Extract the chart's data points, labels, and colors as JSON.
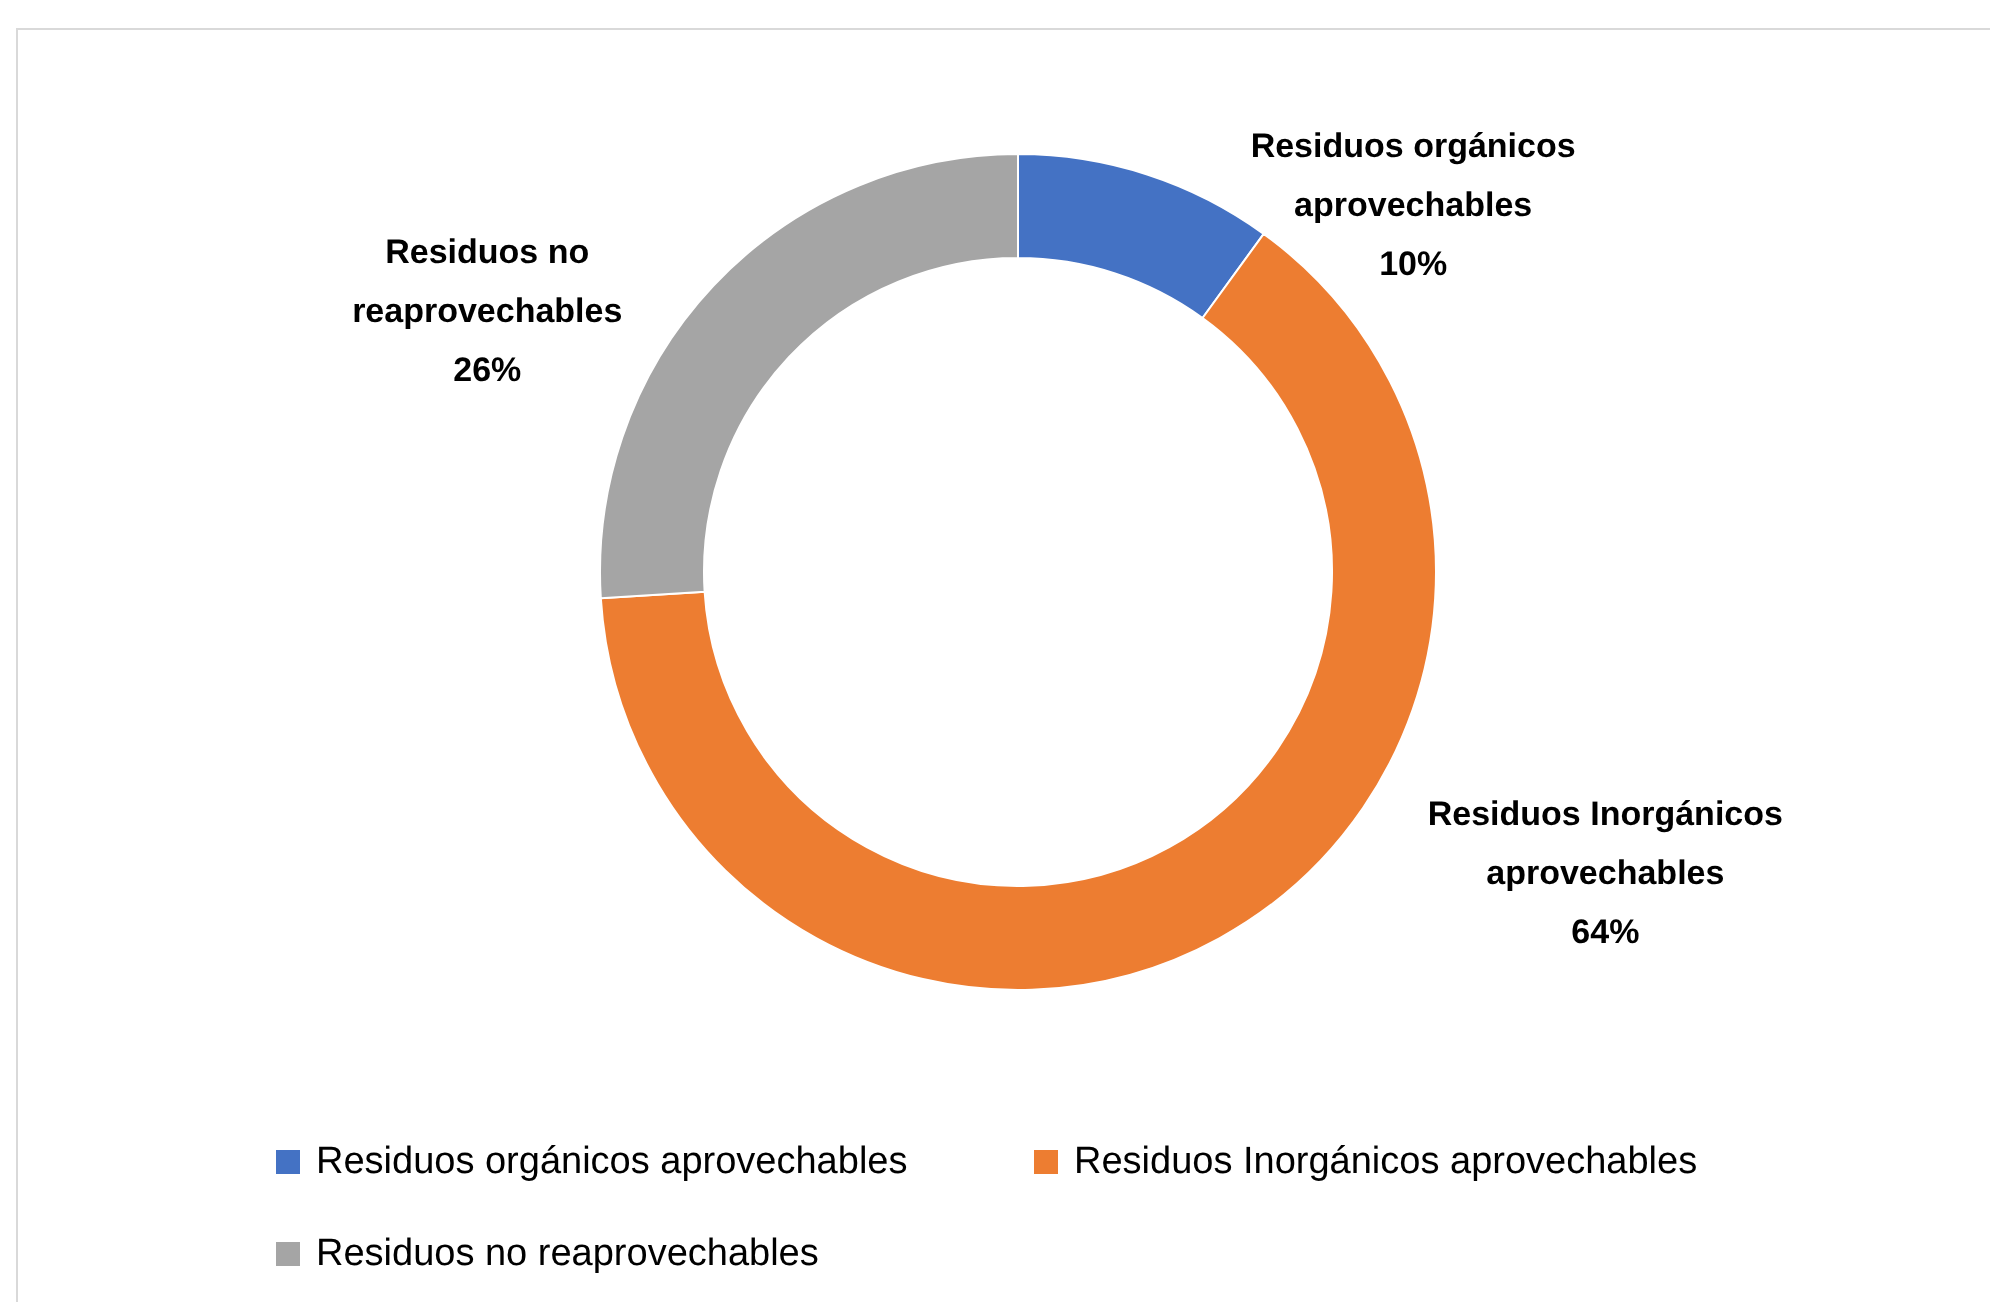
{
  "chart_data": {
    "type": "donut",
    "categories": [
      "Residuos orgánicos aprovechables",
      "Residuos Inorgánicos aprovechables",
      "Residuos no reaprovechables"
    ],
    "values": [
      10,
      64,
      26
    ],
    "colors": [
      "#4472c4",
      "#ed7d31",
      "#a5a5a5"
    ],
    "value_labels": [
      "10%",
      "64%",
      "26%"
    ],
    "legend": "bottom"
  }
}
